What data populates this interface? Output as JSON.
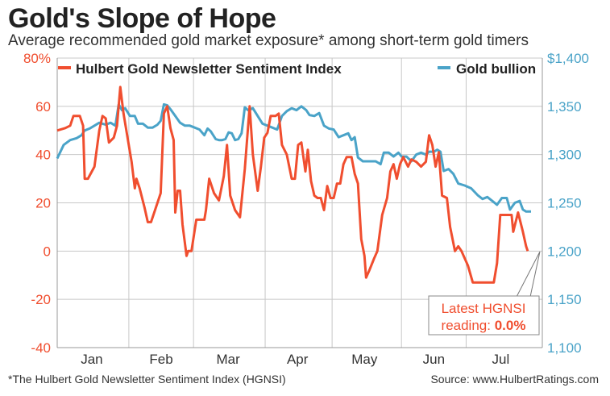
{
  "title": "Gold's Slope of Hope",
  "subtitle": "Average recommended gold market exposure* among short-term gold timers",
  "footnote": "*The Hulbert Gold Newsletter Sentiment Index (HGNSI)",
  "source": "Source: www.HulbertRatings.com",
  "colors": {
    "hgnsi": "#f04e2f",
    "gold": "#4aa3c8",
    "grid": "#c8c8c8",
    "text": "#333333"
  },
  "chart_data": {
    "type": "line",
    "title": "Gold's Slope of Hope",
    "xlabel": "",
    "ylabel_left": "",
    "ylabel_right": "",
    "x_domain": [
      0,
      30
    ],
    "x_ticks": [
      {
        "label": "Jan",
        "x": 2.14
      },
      {
        "label": "Feb",
        "x": 6.43
      },
      {
        "label": "Mar",
        "x": 10.57
      },
      {
        "label": "Apr",
        "x": 14.86
      },
      {
        "label": "May",
        "x": 19.0
      },
      {
        "label": "Jun",
        "x": 23.29
      },
      {
        "label": "Jul",
        "x": 27.43
      }
    ],
    "x_gridlines": [
      4.43,
      8.43,
      12.86,
      17.0,
      21.29,
      25.29
    ],
    "y_left": {
      "ylim": [
        -40,
        80
      ],
      "ticks": [
        80,
        60,
        40,
        20,
        0,
        -20,
        -40
      ],
      "tick_labels": [
        "80%",
        "60",
        "40",
        "20",
        "0",
        "-20",
        "-40"
      ]
    },
    "y_right": {
      "ylim": [
        1100,
        1400
      ],
      "ticks": [
        1400,
        1350,
        1300,
        1250,
        1200,
        1150,
        1100
      ],
      "tick_labels": [
        "$1,400",
        "1,350",
        "1,300",
        "1,250",
        "1,200",
        "1,150",
        "1,100"
      ]
    },
    "legend": [
      {
        "name": "Hulbert Gold Newsletter Sentiment Index",
        "axis": "left",
        "position": "top-left"
      },
      {
        "name": "Gold bullion",
        "axis": "right",
        "position": "top-right"
      }
    ],
    "series": [
      {
        "name": "Hulbert Gold Newsletter Sentiment Index",
        "axis": "left",
        "points": [
          [
            0.0,
            50
          ],
          [
            0.5,
            51
          ],
          [
            0.8,
            52
          ],
          [
            1.0,
            56
          ],
          [
            1.4,
            56
          ],
          [
            1.6,
            52
          ],
          [
            1.7,
            30
          ],
          [
            1.9,
            30
          ],
          [
            2.3,
            35
          ],
          [
            2.6,
            50
          ],
          [
            2.8,
            56
          ],
          [
            3.0,
            55
          ],
          [
            3.2,
            45
          ],
          [
            3.5,
            47
          ],
          [
            3.7,
            52
          ],
          [
            3.9,
            68
          ],
          [
            4.1,
            57
          ],
          [
            4.4,
            45
          ],
          [
            4.6,
            37
          ],
          [
            4.8,
            26
          ],
          [
            4.9,
            30
          ],
          [
            5.1,
            26
          ],
          [
            5.4,
            18
          ],
          [
            5.6,
            12
          ],
          [
            5.8,
            12
          ],
          [
            6.0,
            16
          ],
          [
            6.2,
            20
          ],
          [
            6.4,
            24
          ],
          [
            6.6,
            57
          ],
          [
            6.8,
            60
          ],
          [
            7.0,
            51
          ],
          [
            7.2,
            46
          ],
          [
            7.3,
            16
          ],
          [
            7.45,
            25
          ],
          [
            7.6,
            25
          ],
          [
            7.75,
            11
          ],
          [
            8.0,
            -2
          ],
          [
            8.1,
            0
          ],
          [
            8.3,
            0
          ],
          [
            8.6,
            13
          ],
          [
            9.1,
            13
          ],
          [
            9.2,
            17
          ],
          [
            9.4,
            30
          ],
          [
            9.7,
            24
          ],
          [
            10.0,
            21
          ],
          [
            10.3,
            31
          ],
          [
            10.5,
            44
          ],
          [
            10.7,
            23
          ],
          [
            11.0,
            17
          ],
          [
            11.3,
            14
          ],
          [
            11.6,
            34
          ],
          [
            11.9,
            60
          ],
          [
            12.1,
            40
          ],
          [
            12.4,
            25
          ],
          [
            12.6,
            35
          ],
          [
            12.8,
            47
          ],
          [
            13.0,
            49
          ],
          [
            13.2,
            56
          ],
          [
            13.5,
            56
          ],
          [
            13.7,
            57
          ],
          [
            13.9,
            44
          ],
          [
            14.2,
            40
          ],
          [
            14.5,
            30
          ],
          [
            14.7,
            30
          ],
          [
            14.9,
            44
          ],
          [
            15.1,
            45
          ],
          [
            15.35,
            33
          ],
          [
            15.5,
            42
          ],
          [
            15.7,
            29
          ],
          [
            15.9,
            23
          ],
          [
            16.1,
            22
          ],
          [
            16.3,
            22
          ],
          [
            16.5,
            17
          ],
          [
            16.7,
            27
          ],
          [
            16.9,
            22
          ],
          [
            17.1,
            22
          ],
          [
            17.3,
            28
          ],
          [
            17.5,
            28
          ],
          [
            17.7,
            36
          ],
          [
            17.9,
            39
          ],
          [
            18.2,
            39
          ],
          [
            18.4,
            32
          ],
          [
            18.6,
            28
          ],
          [
            18.8,
            5
          ],
          [
            19.0,
            -2
          ],
          [
            19.1,
            -11
          ],
          [
            19.3,
            -8
          ],
          [
            19.6,
            -3
          ],
          [
            19.8,
            0
          ],
          [
            20.1,
            15
          ],
          [
            20.4,
            22
          ],
          [
            20.6,
            33
          ],
          [
            20.8,
            36
          ],
          [
            21.0,
            30
          ],
          [
            21.2,
            36
          ],
          [
            21.4,
            39
          ],
          [
            21.7,
            35
          ],
          [
            21.9,
            38
          ],
          [
            22.2,
            37
          ],
          [
            22.5,
            35
          ],
          [
            22.8,
            37
          ],
          [
            23.0,
            48
          ],
          [
            23.2,
            44
          ],
          [
            23.4,
            35
          ],
          [
            23.6,
            41
          ],
          [
            23.8,
            23
          ],
          [
            24.1,
            22
          ],
          [
            24.3,
            10
          ],
          [
            24.6,
            0
          ],
          [
            24.8,
            2
          ],
          [
            25.0,
            0
          ],
          [
            25.4,
            -6
          ],
          [
            25.7,
            -13
          ],
          [
            26.0,
            -13
          ],
          [
            26.5,
            -13
          ],
          [
            27.0,
            -13
          ],
          [
            27.2,
            -5
          ],
          [
            27.4,
            15
          ],
          [
            27.8,
            15
          ],
          [
            28.1,
            15
          ],
          [
            28.2,
            8
          ],
          [
            28.5,
            16
          ],
          [
            28.8,
            8
          ],
          [
            29.0,
            2
          ],
          [
            29.1,
            0
          ]
        ]
      },
      {
        "name": "Gold bullion",
        "axis": "right",
        "points": [
          [
            0.0,
            1296
          ],
          [
            0.4,
            1310
          ],
          [
            0.8,
            1315
          ],
          [
            1.2,
            1317
          ],
          [
            1.5,
            1320
          ],
          [
            1.7,
            1325
          ],
          [
            2.0,
            1327
          ],
          [
            2.3,
            1330
          ],
          [
            2.6,
            1333
          ],
          [
            3.0,
            1331
          ],
          [
            3.3,
            1333
          ],
          [
            3.6,
            1330
          ],
          [
            3.8,
            1352
          ],
          [
            4.0,
            1346
          ],
          [
            4.2,
            1348
          ],
          [
            4.5,
            1340
          ],
          [
            4.8,
            1340
          ],
          [
            5.0,
            1332
          ],
          [
            5.3,
            1332
          ],
          [
            5.6,
            1328
          ],
          [
            5.9,
            1328
          ],
          [
            6.2,
            1331
          ],
          [
            6.4,
            1335
          ],
          [
            6.6,
            1352
          ],
          [
            6.8,
            1351
          ],
          [
            7.0,
            1347
          ],
          [
            7.3,
            1340
          ],
          [
            7.6,
            1333
          ],
          [
            7.9,
            1330
          ],
          [
            8.2,
            1330
          ],
          [
            8.5,
            1328
          ],
          [
            8.8,
            1326
          ],
          [
            9.1,
            1320
          ],
          [
            9.3,
            1327
          ],
          [
            9.5,
            1324
          ],
          [
            9.8,
            1316
          ],
          [
            10.0,
            1315
          ],
          [
            10.2,
            1315
          ],
          [
            10.4,
            1316
          ],
          [
            10.6,
            1323
          ],
          [
            10.8,
            1322
          ],
          [
            11.0,
            1315
          ],
          [
            11.2,
            1316
          ],
          [
            11.4,
            1322
          ],
          [
            11.6,
            1349
          ],
          [
            11.8,
            1346
          ],
          [
            12.1,
            1348
          ],
          [
            12.4,
            1340
          ],
          [
            12.7,
            1332
          ],
          [
            13.0,
            1330
          ],
          [
            13.3,
            1328
          ],
          [
            13.6,
            1326
          ],
          [
            13.9,
            1340
          ],
          [
            14.2,
            1345
          ],
          [
            14.5,
            1348
          ],
          [
            14.8,
            1346
          ],
          [
            15.1,
            1350
          ],
          [
            15.4,
            1346
          ],
          [
            15.6,
            1341
          ],
          [
            15.9,
            1340
          ],
          [
            16.2,
            1343
          ],
          [
            16.5,
            1330
          ],
          [
            16.8,
            1327
          ],
          [
            17.1,
            1326
          ],
          [
            17.4,
            1318
          ],
          [
            17.7,
            1320
          ],
          [
            18.0,
            1322
          ],
          [
            18.2,
            1315
          ],
          [
            18.4,
            1318
          ],
          [
            18.6,
            1297
          ],
          [
            18.9,
            1293
          ],
          [
            19.3,
            1293
          ],
          [
            19.7,
            1293
          ],
          [
            20.0,
            1290
          ],
          [
            20.2,
            1302
          ],
          [
            20.5,
            1302
          ],
          [
            20.8,
            1298
          ],
          [
            21.1,
            1302
          ],
          [
            21.3,
            1298
          ],
          [
            21.6,
            1298
          ],
          [
            21.9,
            1293
          ],
          [
            22.2,
            1300
          ],
          [
            22.5,
            1302
          ],
          [
            22.8,
            1300
          ],
          [
            23.0,
            1303
          ],
          [
            23.3,
            1303
          ],
          [
            23.5,
            1305
          ],
          [
            23.7,
            1303
          ],
          [
            23.9,
            1283
          ],
          [
            24.2,
            1285
          ],
          [
            24.5,
            1280
          ],
          [
            24.8,
            1270
          ],
          [
            25.2,
            1268
          ],
          [
            25.6,
            1265
          ],
          [
            26.0,
            1258
          ],
          [
            26.3,
            1254
          ],
          [
            26.6,
            1256
          ],
          [
            26.9,
            1252
          ],
          [
            27.2,
            1248
          ],
          [
            27.5,
            1255
          ],
          [
            27.8,
            1255
          ],
          [
            28.0,
            1243
          ],
          [
            28.3,
            1250
          ],
          [
            28.6,
            1252
          ],
          [
            28.8,
            1243
          ],
          [
            29.0,
            1241
          ],
          [
            29.3,
            1241
          ]
        ]
      }
    ],
    "annotation": {
      "line1": "Latest HGNSI",
      "line2_prefix": "reading: ",
      "line2_value": "0.0%"
    }
  }
}
